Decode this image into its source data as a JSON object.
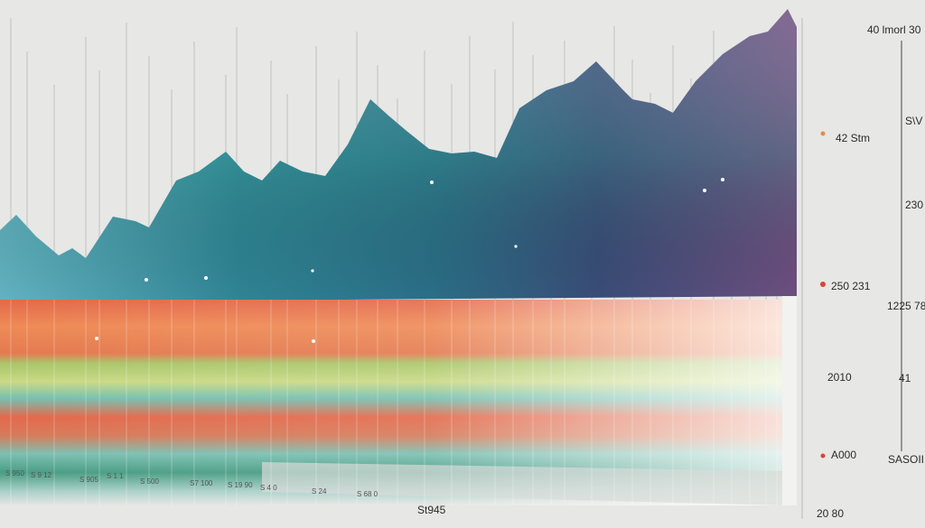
{
  "right_labels": [
    "40 lmorl 30",
    "42 Stm",
    "S\\V",
    "230",
    "250 231",
    "1225 78",
    "2010",
    "41",
    "A000",
    "SASOII",
    "20 80"
  ],
  "bottom_title": "St945",
  "bottom_labels": [
    "S 950",
    "S 9 12",
    "S 905",
    "S 1 1",
    "S 500",
    "S7 100",
    "S 19 90",
    "S 4 0",
    "S 24",
    "S 68 0"
  ]
}
